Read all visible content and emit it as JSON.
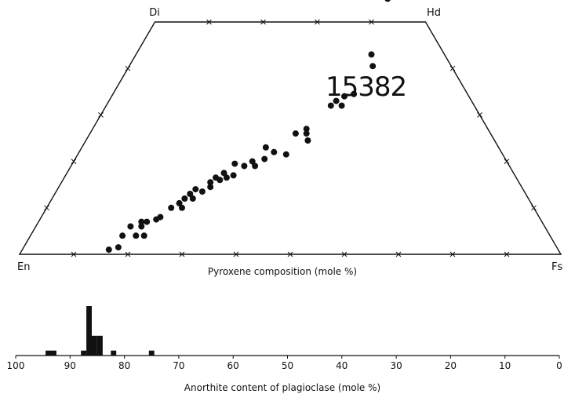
{
  "chart_data": [
    {
      "type": "scatter",
      "title": "15382",
      "xlabel": "Pyroxene composition (mole %)",
      "vertices": {
        "en": "En",
        "fs": "Fs",
        "di": "Di",
        "hd": "Hd"
      },
      "points_wo_fs": [
        [
          1,
          16
        ],
        [
          1.5,
          17.5
        ],
        [
          4,
          17
        ],
        [
          4,
          19.5
        ],
        [
          4,
          21
        ],
        [
          6,
          17.5
        ],
        [
          6,
          19.5
        ],
        [
          7,
          19
        ],
        [
          7,
          20
        ],
        [
          7.5,
          21.5
        ],
        [
          8,
          22
        ],
        [
          10,
          23
        ],
        [
          10,
          25
        ],
        [
          11,
          24
        ],
        [
          12,
          24.5
        ],
        [
          12,
          26
        ],
        [
          13,
          25
        ],
        [
          13.5,
          27
        ],
        [
          14,
          25.5
        ],
        [
          14.5,
          28
        ],
        [
          15.5,
          27.5
        ],
        [
          16,
          29
        ],
        [
          16.5,
          28
        ],
        [
          16.5,
          30
        ],
        [
          17,
          31
        ],
        [
          17.5,
          29
        ],
        [
          19.5,
          30
        ],
        [
          19,
          32
        ],
        [
          20,
          33
        ],
        [
          19,
          34
        ],
        [
          20.5,
          35
        ],
        [
          23,
          34
        ],
        [
          22,
          36
        ],
        [
          21.5,
          38.5
        ],
        [
          26,
          38
        ],
        [
          27,
          39.5
        ],
        [
          26,
          40
        ],
        [
          24.5,
          41
        ],
        [
          32,
          41.5
        ],
        [
          33,
          42
        ],
        [
          32,
          43.5
        ],
        [
          34,
          43
        ],
        [
          34.5,
          44.5
        ],
        [
          43,
          43.5
        ],
        [
          40.5,
          45
        ],
        [
          58,
          36.5
        ],
        [
          58,
          36
        ],
        [
          55,
          40.5
        ],
        [
          62,
          35.5
        ],
        [
          60.5,
          40.5
        ]
      ]
    },
    {
      "type": "bar",
      "xlabel": "Anorthite content of plagioclase (mole %)",
      "xlim": [
        100,
        0
      ],
      "xticks": [
        "100",
        "90",
        "80",
        "70",
        "60",
        "50",
        "40",
        "30",
        "20",
        "10",
        "0"
      ],
      "bars": [
        {
          "x": 94,
          "count": 1
        },
        {
          "x": 93,
          "count": 1
        },
        {
          "x": 87.5,
          "count": 1
        },
        {
          "x": 86.5,
          "count": 10
        },
        {
          "x": 85.5,
          "count": 4
        },
        {
          "x": 84.5,
          "count": 4
        },
        {
          "x": 82,
          "count": 1
        },
        {
          "x": 75,
          "count": 1
        }
      ]
    }
  ]
}
